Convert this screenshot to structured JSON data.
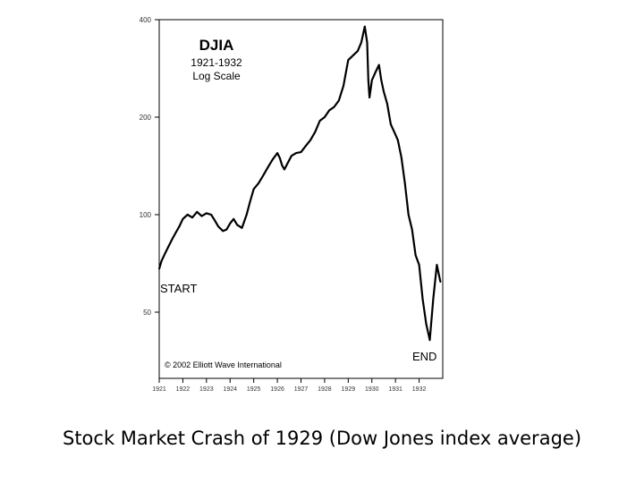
{
  "caption": "Stock Market Crash of 1929 (Dow Jones index average)",
  "chart_data": {
    "type": "line",
    "title": "DJIA",
    "subtitle_lines": [
      "1921-1932",
      "Log Scale"
    ],
    "xlabel": "",
    "ylabel": "",
    "scale": "log",
    "grid": false,
    "ylim": [
      25,
      400
    ],
    "xlim": [
      1921,
      1933
    ],
    "y_ticks": [
      {
        "value": 400,
        "label": "400"
      },
      {
        "value": 200,
        "label": "200"
      },
      {
        "value": 100,
        "label": "100"
      },
      {
        "value": 50,
        "label": "50"
      }
    ],
    "x_ticks": [
      {
        "value": 1921,
        "label": "1921"
      },
      {
        "value": 1922,
        "label": "1922"
      },
      {
        "value": 1923,
        "label": "1923"
      },
      {
        "value": 1924,
        "label": "1924"
      },
      {
        "value": 1925,
        "label": "1925"
      },
      {
        "value": 1926,
        "label": "1926"
      },
      {
        "value": 1927,
        "label": "1927"
      },
      {
        "value": 1928,
        "label": "1928"
      },
      {
        "value": 1929,
        "label": "1929"
      },
      {
        "value": 1930,
        "label": "1930"
      },
      {
        "value": 1931,
        "label": "1931"
      },
      {
        "value": 1932,
        "label": "1932"
      }
    ],
    "series": [
      {
        "values": [
          [
            1921.0,
            68
          ],
          [
            1921.1,
            72
          ],
          [
            1921.25,
            76
          ],
          [
            1921.4,
            80
          ],
          [
            1921.55,
            84
          ],
          [
            1921.7,
            88
          ],
          [
            1921.85,
            92
          ],
          [
            1922.0,
            97
          ],
          [
            1922.2,
            100
          ],
          [
            1922.4,
            98
          ],
          [
            1922.6,
            102
          ],
          [
            1922.8,
            99
          ],
          [
            1923.0,
            101
          ],
          [
            1923.2,
            100
          ],
          [
            1923.35,
            96
          ],
          [
            1923.5,
            92
          ],
          [
            1923.7,
            89
          ],
          [
            1923.85,
            90
          ],
          [
            1924.0,
            94
          ],
          [
            1924.15,
            97
          ],
          [
            1924.3,
            93
          ],
          [
            1924.5,
            91
          ],
          [
            1924.7,
            100
          ],
          [
            1924.85,
            110
          ],
          [
            1925.0,
            120
          ],
          [
            1925.2,
            125
          ],
          [
            1925.4,
            132
          ],
          [
            1925.6,
            140
          ],
          [
            1925.8,
            148
          ],
          [
            1926.0,
            155
          ],
          [
            1926.1,
            150
          ],
          [
            1926.2,
            142
          ],
          [
            1926.3,
            138
          ],
          [
            1926.45,
            145
          ],
          [
            1926.6,
            152
          ],
          [
            1926.8,
            155
          ],
          [
            1927.0,
            156
          ],
          [
            1927.2,
            163
          ],
          [
            1927.4,
            170
          ],
          [
            1927.6,
            180
          ],
          [
            1927.8,
            195
          ],
          [
            1928.0,
            200
          ],
          [
            1928.2,
            210
          ],
          [
            1928.4,
            215
          ],
          [
            1928.6,
            225
          ],
          [
            1928.8,
            250
          ],
          [
            1929.0,
            300
          ],
          [
            1929.2,
            310
          ],
          [
            1929.4,
            320
          ],
          [
            1929.55,
            340
          ],
          [
            1929.7,
            381
          ],
          [
            1929.8,
            340
          ],
          [
            1929.85,
            260
          ],
          [
            1929.9,
            230
          ],
          [
            1930.0,
            260
          ],
          [
            1930.15,
            275
          ],
          [
            1930.3,
            290
          ],
          [
            1930.4,
            260
          ],
          [
            1930.5,
            240
          ],
          [
            1930.65,
            220
          ],
          [
            1930.8,
            190
          ],
          [
            1930.95,
            180
          ],
          [
            1931.1,
            170
          ],
          [
            1931.25,
            150
          ],
          [
            1931.4,
            125
          ],
          [
            1931.55,
            100
          ],
          [
            1931.7,
            90
          ],
          [
            1931.85,
            75
          ],
          [
            1932.0,
            70
          ],
          [
            1932.15,
            55
          ],
          [
            1932.3,
            46
          ],
          [
            1932.45,
            41
          ],
          [
            1932.6,
            55
          ],
          [
            1932.75,
            70
          ],
          [
            1932.9,
            62
          ]
        ]
      }
    ],
    "annotations": [
      {
        "text": "START",
        "anchor": "start"
      },
      {
        "text": "END",
        "anchor": "end"
      },
      {
        "text": "© 2002 Elliott Wave International",
        "anchor": "bottom-left"
      }
    ]
  }
}
